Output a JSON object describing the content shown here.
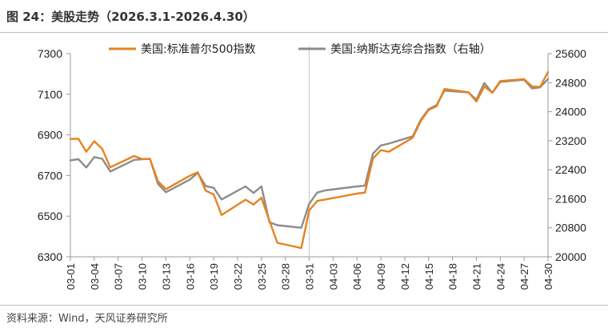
{
  "header": {
    "title": "图 24：美股走势（2026.3.1-2026.4.30）"
  },
  "footer": {
    "source": "资料来源：Wind，天风证券研究所"
  },
  "colors": {
    "sp500": "#E8821E",
    "nasdaq": "#8C8C8C",
    "axis": "#999999",
    "divider": "#C8C8C8"
  },
  "chart_data": {
    "type": "line",
    "title": "",
    "xlabel": "",
    "ylabel": "",
    "ylim": [
      6300,
      7300
    ],
    "y2lim": [
      20000,
      25600
    ],
    "yticks": [
      6300,
      6500,
      6700,
      6900,
      7100,
      7300
    ],
    "y2ticks": [
      20000,
      20800,
      21600,
      22400,
      23200,
      24000,
      24800,
      25600
    ],
    "x_tick_labels": [
      "03-01",
      "03-04",
      "03-07",
      "03-10",
      "03-13",
      "03-16",
      "03-19",
      "03-22",
      "03-25",
      "03-28",
      "03-31",
      "04-03",
      "04-06",
      "04-09",
      "04-12",
      "04-15",
      "04-18",
      "04-21",
      "04-24",
      "04-27",
      "04-30"
    ],
    "x": [
      "03-01",
      "03-02",
      "03-03",
      "03-04",
      "03-05",
      "03-06",
      "03-09",
      "03-10",
      "03-11",
      "03-12",
      "03-13",
      "03-16",
      "03-17",
      "03-18",
      "03-19",
      "03-20",
      "03-23",
      "03-24",
      "03-25",
      "03-26",
      "03-27",
      "03-30",
      "03-31",
      "04-01",
      "04-02",
      "04-06",
      "04-07",
      "04-08",
      "04-09",
      "04-10",
      "04-13",
      "04-14",
      "04-15",
      "04-16",
      "04-17",
      "04-20",
      "04-21",
      "04-22",
      "04-23",
      "04-24",
      "04-27",
      "04-28",
      "04-29",
      "04-30"
    ],
    "series": [
      {
        "name": "美国:标准普尔500指数",
        "axis": "left",
        "values": [
          6880,
          6881,
          6817,
          6869,
          6831,
          6740,
          6796,
          6781,
          6781,
          6672,
          6633,
          6699,
          6716,
          6625,
          6607,
          6506,
          6581,
          6557,
          6591,
          6477,
          6369,
          6343,
          6528,
          6575,
          6582,
          6611,
          6616,
          6783,
          6825,
          6817,
          6886,
          6967,
          7023,
          7041,
          7126,
          7110,
          7064,
          7138,
          7108,
          7165,
          7174,
          7139,
          7136,
          7209
        ]
      },
      {
        "name": "美国:纳斯达克综合指数（右轴）",
        "axis": "right",
        "values": [
          22660,
          22690,
          22460,
          22750,
          22700,
          22350,
          22670,
          22690,
          22700,
          22010,
          21780,
          22130,
          22310,
          21950,
          21900,
          21580,
          21940,
          21760,
          21940,
          20950,
          20870,
          20800,
          21460,
          21770,
          21830,
          21940,
          21960,
          22840,
          23070,
          23120,
          23320,
          23770,
          24070,
          24180,
          24580,
          24530,
          24330,
          24790,
          24520,
          24820,
          24880,
          24640,
          24670,
          24900
        ]
      }
    ],
    "legend_position": "top",
    "grid": false
  }
}
